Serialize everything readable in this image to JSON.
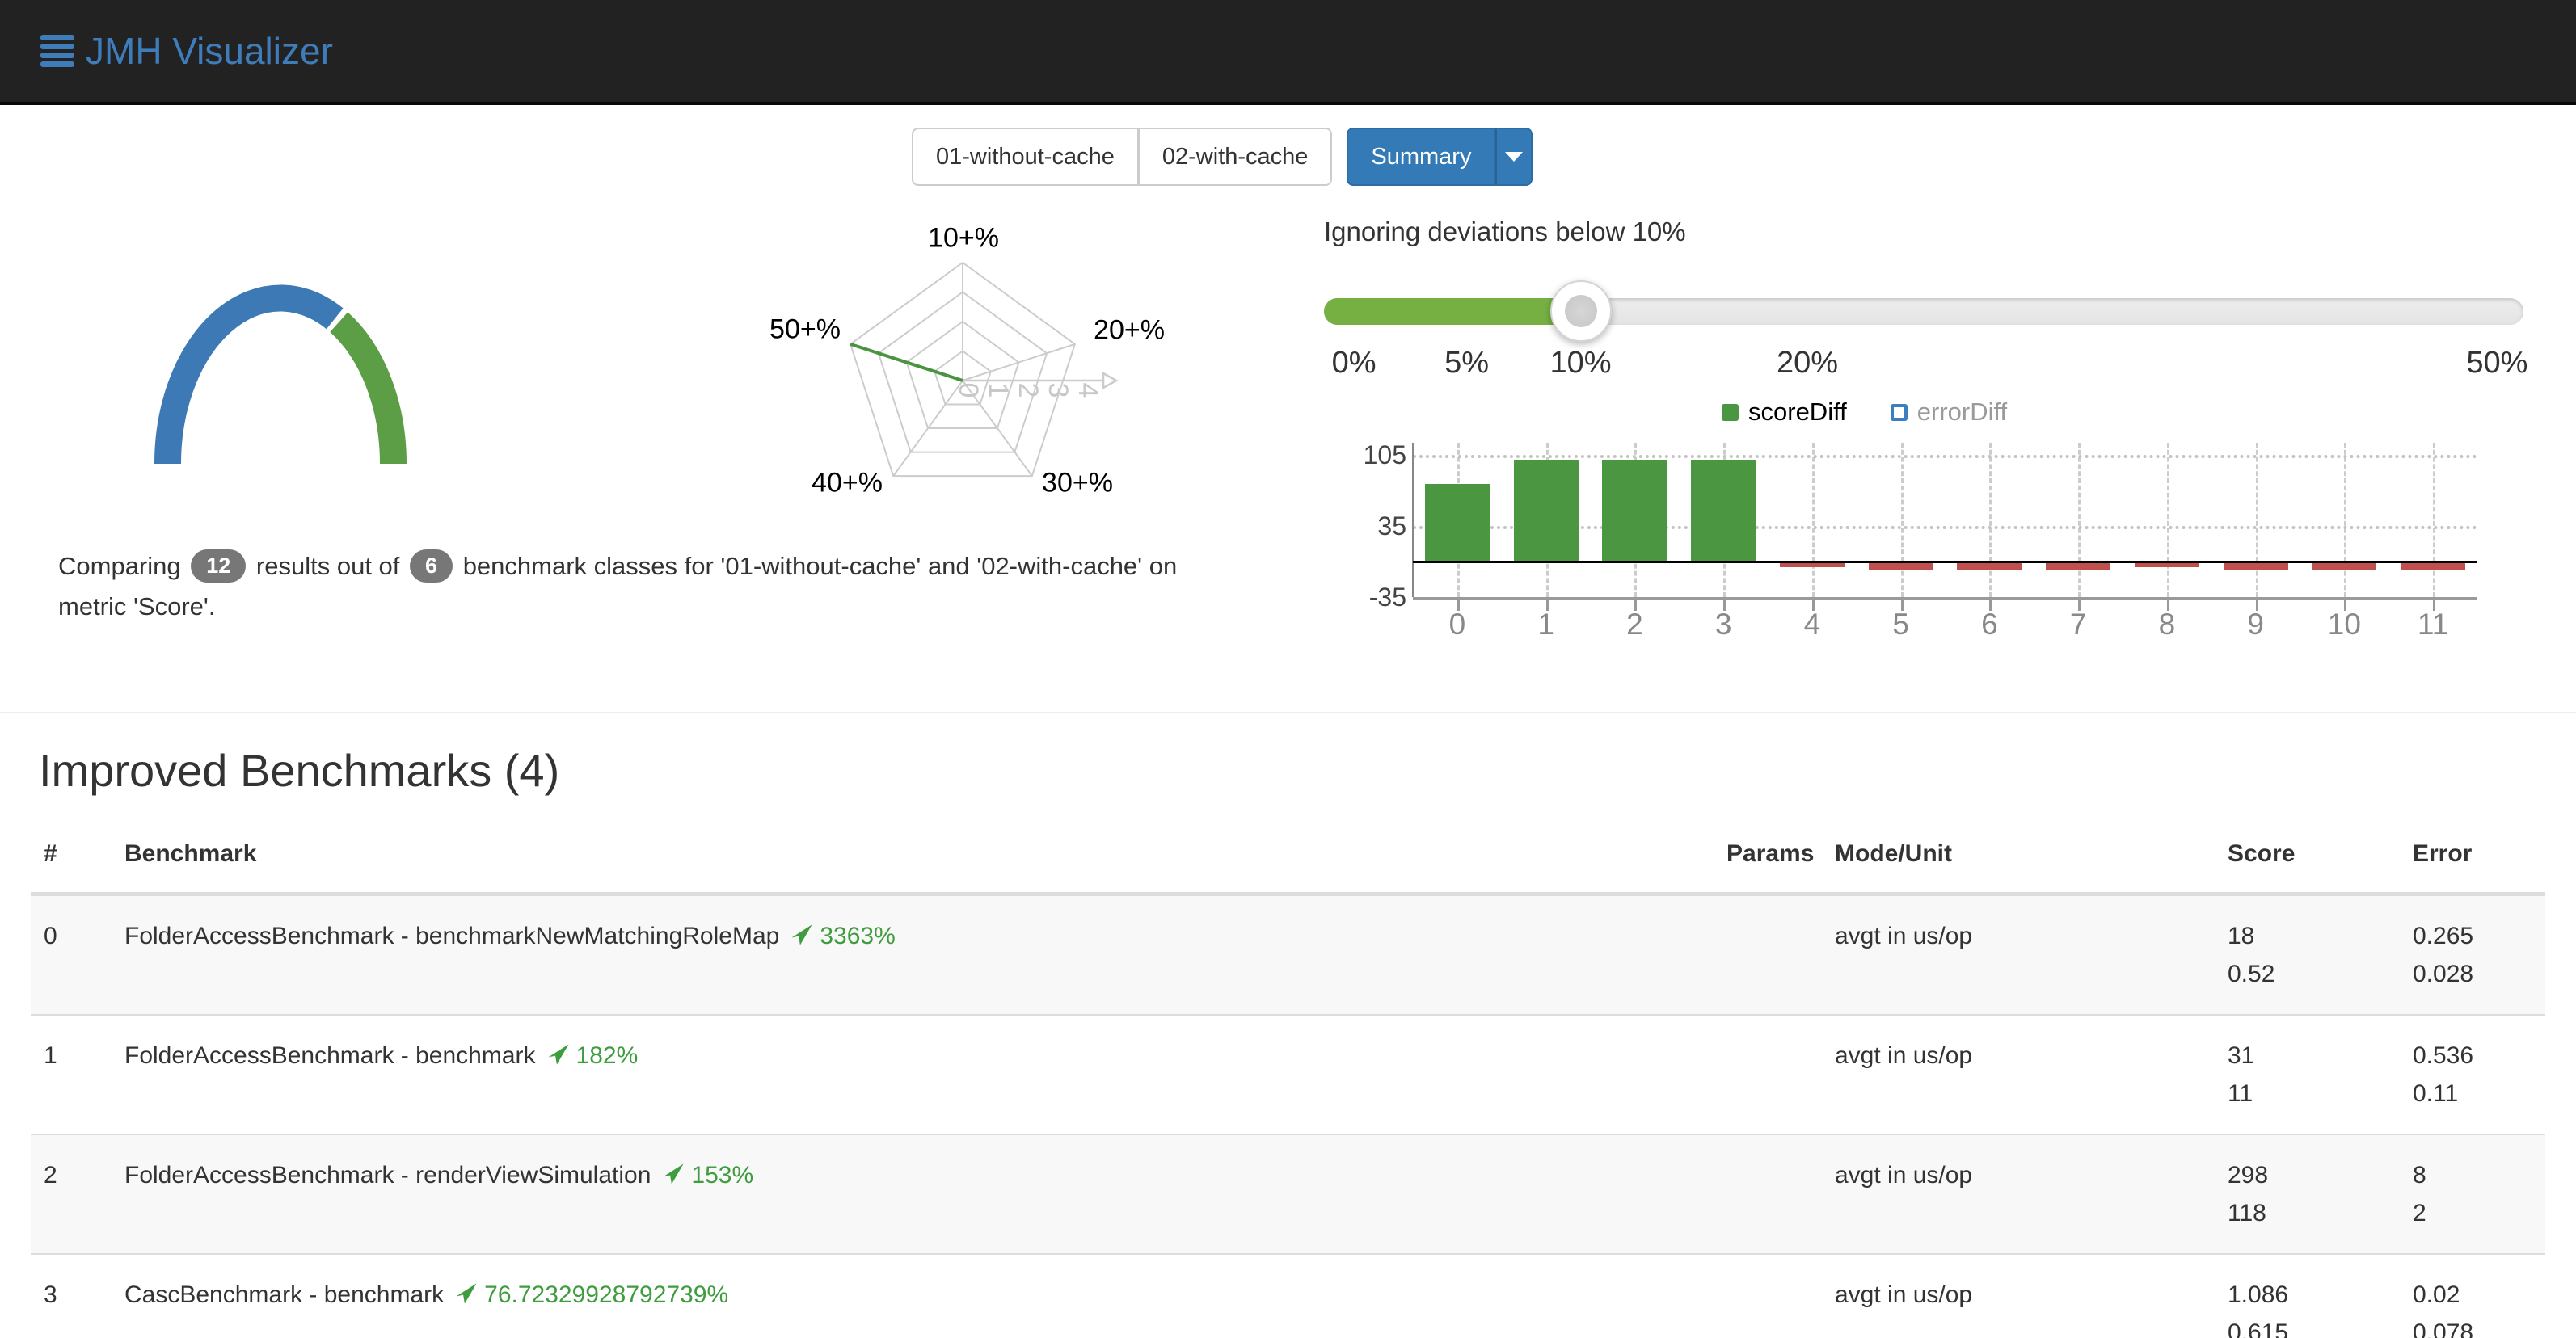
{
  "navbar": {
    "brand": "JMH Visualizer"
  },
  "toolbar": {
    "run_tabs": [
      "01-without-cache",
      "02-with-cache"
    ],
    "summary_label": "Summary"
  },
  "summary_text": {
    "prefix": "Comparing",
    "results_count": "12",
    "middle": "results out of",
    "classes_count": "6",
    "suffix": "benchmark classes for '01-without-cache' and '02-with-cache' on metric 'Score'."
  },
  "deviation_slider": {
    "label": "Ignoring deviations below 10%",
    "ticks": [
      {
        "label": "0%",
        "pos": 0.025
      },
      {
        "label": "5%",
        "pos": 0.119
      },
      {
        "label": "10%",
        "pos": 0.214
      },
      {
        "label": "20%",
        "pos": 0.403
      },
      {
        "label": "50%",
        "pos": 0.978
      }
    ],
    "handle_pos": 0.214,
    "fill_color": "#76b043"
  },
  "legend": {
    "items": [
      {
        "label": "scoreDiff",
        "color": "#4a9641",
        "active": true
      },
      {
        "label": "errorDiff",
        "color": "#3c7fc0",
        "active": false
      }
    ]
  },
  "chart_data": [
    {
      "type": "pie",
      "shape": "semicircle-donut-gauge",
      "total": 12,
      "slices": [
        {
          "name": "other-results",
          "value": 8,
          "color": "#3d7ab5"
        },
        {
          "name": "improved-results",
          "value": 4,
          "color": "#5b9e45"
        }
      ]
    },
    {
      "type": "radar",
      "axes": [
        "10+%",
        "20+%",
        "30+%",
        "40+%",
        "50+%"
      ],
      "ring_values": [
        1,
        2,
        3,
        4
      ],
      "axis_tick_labels": [
        "0",
        "1",
        "2",
        "3",
        "4"
      ],
      "max": 4,
      "series": [
        {
          "name": "improvement-distribution",
          "color": "#4a9440",
          "values": [
            0,
            0,
            0,
            0,
            4
          ]
        }
      ]
    },
    {
      "type": "bar",
      "categories": [
        "0",
        "1",
        "2",
        "3",
        "4",
        "5",
        "6",
        "7",
        "8",
        "9",
        "10",
        "11"
      ],
      "series": [
        {
          "name": "scoreDiff",
          "color": "#4a9641",
          "negative_color": "#c0504d",
          "values": [
            76,
            100,
            100,
            100,
            -4,
            -7,
            -7,
            -7,
            -4,
            -7,
            -6,
            -6
          ]
        },
        {
          "name": "errorDiff",
          "color": "#3c7fc0",
          "hidden": true,
          "values": []
        }
      ],
      "ylim": [
        -35,
        105
      ],
      "yticks": [
        105,
        35,
        -35
      ],
      "xlabel": "",
      "ylabel": "",
      "grid": "dashed-vertical"
    }
  ],
  "improved_section": {
    "title": "Improved Benchmarks (4)",
    "columns": {
      "index": "#",
      "benchmark": "Benchmark",
      "params": "Params",
      "mode_unit": "Mode/Unit",
      "score": "Score",
      "error": "Error"
    },
    "rows": [
      {
        "index": "0",
        "benchmark": "FolderAccessBenchmark - benchmarkNewMatchingRoleMap",
        "change": "3363%",
        "params": "",
        "mode_unit": "avgt in us/op",
        "score": [
          "18",
          "0.52"
        ],
        "error": [
          "0.265",
          "0.028"
        ]
      },
      {
        "index": "1",
        "benchmark": "FolderAccessBenchmark - benchmark",
        "change": "182%",
        "params": "",
        "mode_unit": "avgt in us/op",
        "score": [
          "31",
          "11"
        ],
        "error": [
          "0.536",
          "0.11"
        ]
      },
      {
        "index": "2",
        "benchmark": "FolderAccessBenchmark - renderViewSimulation",
        "change": "153%",
        "params": "",
        "mode_unit": "avgt in us/op",
        "score": [
          "298",
          "118"
        ],
        "error": [
          "8",
          "2"
        ]
      },
      {
        "index": "3",
        "benchmark": "CascBenchmark - benchmark",
        "change": "76.72329928792739%",
        "params": "",
        "mode_unit": "avgt in us/op",
        "score": [
          "1.086",
          "0.615"
        ],
        "error": [
          "0.02",
          "0.078"
        ]
      }
    ]
  }
}
